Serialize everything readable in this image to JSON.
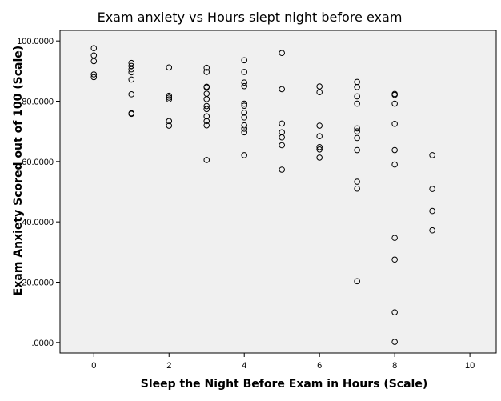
{
  "chart_data": {
    "type": "scatter",
    "title": "Exam anxiety vs Hours slept night before exam",
    "xlabel": "Sleep the Night Before Exam in Hours (Scale)",
    "ylabel": "Exam Anxiety Scored out of 100 (Scale)",
    "xlim": [
      -0.9,
      10.7
    ],
    "ylim": [
      -3.5,
      103.5
    ],
    "x_ticks": [
      {
        "value": 0,
        "label": "0"
      },
      {
        "value": 2,
        "label": "2"
      },
      {
        "value": 4,
        "label": "4"
      },
      {
        "value": 6,
        "label": "6"
      },
      {
        "value": 8,
        "label": "8"
      },
      {
        "value": 10,
        "label": "10"
      }
    ],
    "y_ticks": [
      {
        "value": 0,
        "label": ".0000"
      },
      {
        "value": 20,
        "label": "20.0000"
      },
      {
        "value": 40,
        "label": "40.0000"
      },
      {
        "value": 60,
        "label": "60.0000"
      },
      {
        "value": 80,
        "label": "80.0000"
      },
      {
        "value": 100,
        "label": "100.0000"
      }
    ],
    "grid": false,
    "legend": "none",
    "marker": "open-circle",
    "series": [
      {
        "points": [
          [
            0,
            97.6
          ],
          [
            0,
            95.2
          ],
          [
            0,
            93.3
          ],
          [
            0,
            88.9
          ],
          [
            0,
            88.0
          ],
          [
            1,
            92.7
          ],
          [
            1,
            91.7
          ],
          [
            1,
            90.6
          ],
          [
            1,
            89.6
          ],
          [
            1,
            87.2
          ],
          [
            1,
            82.3
          ],
          [
            1,
            76.0
          ],
          [
            1,
            75.8
          ],
          [
            2,
            91.2
          ],
          [
            2,
            81.8
          ],
          [
            2,
            81.2
          ],
          [
            2,
            80.6
          ],
          [
            2,
            73.4
          ],
          [
            2,
            71.9
          ],
          [
            3,
            91.1
          ],
          [
            3,
            89.7
          ],
          [
            3,
            84.8
          ],
          [
            3,
            84.6
          ],
          [
            3,
            82.5
          ],
          [
            3,
            80.7
          ],
          [
            3,
            78.4
          ],
          [
            3,
            77.4
          ],
          [
            3,
            75.0
          ],
          [
            3,
            73.4
          ],
          [
            3,
            72.0
          ],
          [
            3,
            60.5
          ],
          [
            4,
            93.6
          ],
          [
            4,
            89.7
          ],
          [
            4,
            86.2
          ],
          [
            4,
            85.0
          ],
          [
            4,
            79.2
          ],
          [
            4,
            78.5
          ],
          [
            4,
            76.2
          ],
          [
            4,
            74.6
          ],
          [
            4,
            72.0
          ],
          [
            4,
            70.9
          ],
          [
            4,
            69.7
          ],
          [
            4,
            62.1
          ],
          [
            5,
            96.0
          ],
          [
            5,
            84.0
          ],
          [
            5,
            72.6
          ],
          [
            5,
            69.7
          ],
          [
            5,
            68.0
          ],
          [
            5,
            65.4
          ],
          [
            5,
            57.3
          ],
          [
            6,
            84.9
          ],
          [
            6,
            83.0
          ],
          [
            6,
            71.9
          ],
          [
            6,
            68.4
          ],
          [
            6,
            64.8
          ],
          [
            6,
            64.0
          ],
          [
            6,
            61.3
          ],
          [
            7,
            86.4
          ],
          [
            7,
            84.7
          ],
          [
            7,
            81.6
          ],
          [
            7,
            79.2
          ],
          [
            7,
            71.0
          ],
          [
            7,
            70.0
          ],
          [
            7,
            67.8
          ],
          [
            7,
            63.8
          ],
          [
            7,
            53.3
          ],
          [
            7,
            51.0
          ],
          [
            7,
            20.3
          ],
          [
            8,
            82.4
          ],
          [
            8,
            82.1
          ],
          [
            8,
            79.2
          ],
          [
            8,
            72.5
          ],
          [
            8,
            63.8
          ],
          [
            8,
            59.0
          ],
          [
            8,
            34.7
          ],
          [
            8,
            27.5
          ],
          [
            8,
            10.0
          ],
          [
            8,
            0.2
          ],
          [
            9,
            62.1
          ],
          [
            9,
            50.9
          ],
          [
            9,
            43.6
          ],
          [
            9,
            37.2
          ]
        ]
      }
    ]
  }
}
